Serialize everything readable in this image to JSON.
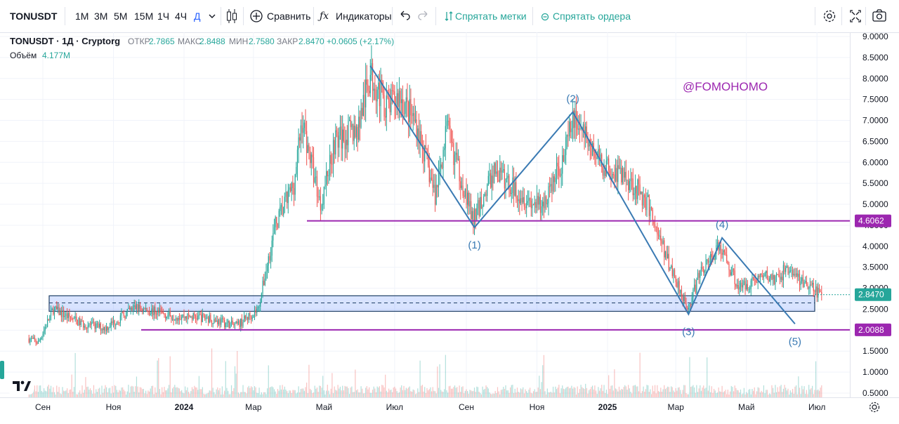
{
  "toolbar": {
    "symbol": "TONUSDT",
    "intervals": [
      "1М",
      "3М",
      "5М",
      "15М",
      "1Ч",
      "4Ч",
      "Д"
    ],
    "compare_label": "Сравнить",
    "indicators_label": "Индикаторы",
    "hide_marks_label": "Спрятать метки",
    "hide_orders_label": "Спрятать ордера",
    "icons": [
      "candles-icon",
      "plus-circle-icon",
      "fx-icon",
      "undo-icon",
      "redo-icon",
      "settings-icon",
      "fullscreen-icon",
      "camera-icon"
    ]
  },
  "legend": {
    "title": "TONUSDT · 1Д · Cryptorg",
    "o_label": "ОТКР",
    "o_value": "2.7865",
    "h_label": "МАКС",
    "h_value": "2.8488",
    "l_label": "МИН",
    "l_value": "2.7580",
    "c_label": "ЗАКР",
    "c_value": "2.8470",
    "change": "+0.0605 (+2.17%)",
    "volume_label": "Объём",
    "volume_value": "4.177M"
  },
  "watermark": "@FOMOHOMO",
  "colors": {
    "up": "#26a69a",
    "down": "#ef5350",
    "wave": "#3a7ab3",
    "level": "#9c27b0",
    "zone": "#2962ff"
  },
  "chart_data": {
    "type": "candlestick",
    "symbol": "TONUSDT",
    "timeframe": "1Д",
    "x_tick_labels": [
      "Сен",
      "Ноя",
      "2024",
      "Мар",
      "Май",
      "Июл",
      "Сен",
      "Ноя",
      "2025",
      "Мар",
      "Май",
      "Июл"
    ],
    "y_tick_labels": [
      "0.5000",
      "1.0000",
      "1.5000",
      "2.0000",
      "2.5000",
      "3.0000",
      "3.5000",
      "4.0000",
      "4.5000",
      "5.0000",
      "5.5000",
      "6.0000",
      "6.5000",
      "7.0000",
      "7.5000",
      "8.0000",
      "8.5000",
      "9.0000"
    ],
    "ylim": [
      0.5,
      9.0
    ],
    "last_price": {
      "value": 2.847,
      "label": "2.8470"
    },
    "horizontal_levels": [
      {
        "value": 4.6062,
        "label": "4.6062"
      },
      {
        "value": 2.0088,
        "label": "2.0088"
      }
    ],
    "support_zone": {
      "low": 2.45,
      "high": 2.82,
      "mid": 2.65
    },
    "wave_labels": [
      "(1)",
      "(2)",
      "(3)",
      "(4)",
      "(5)"
    ],
    "wave_points": [
      {
        "label": "",
        "date": "2024-06-10",
        "price": 8.3
      },
      {
        "label": "(1)",
        "date": "2024-09-08",
        "price": 4.45
      },
      {
        "label": "(2)",
        "date": "2024-12-02",
        "price": 7.2
      },
      {
        "label": "(3)",
        "date": "2025-03-12",
        "price": 2.38
      },
      {
        "label": "(4)",
        "date": "2025-04-10",
        "price": 4.2
      },
      {
        "label": "(5)",
        "date": "2025-06-12",
        "price": 2.15
      }
    ],
    "price_path": [
      {
        "date": "2023-08-20",
        "price": 1.8
      },
      {
        "date": "2023-08-28",
        "price": 1.7
      },
      {
        "date": "2023-09-10",
        "price": 2.5
      },
      {
        "date": "2023-10-05",
        "price": 2.15
      },
      {
        "date": "2023-10-25",
        "price": 2.05
      },
      {
        "date": "2023-11-20",
        "price": 2.55
      },
      {
        "date": "2023-12-20",
        "price": 2.35
      },
      {
        "date": "2024-01-20",
        "price": 2.3
      },
      {
        "date": "2024-02-15",
        "price": 2.1
      },
      {
        "date": "2024-03-05",
        "price": 2.5
      },
      {
        "date": "2024-03-20",
        "price": 4.5
      },
      {
        "date": "2024-04-05",
        "price": 5.5
      },
      {
        "date": "2024-04-12",
        "price": 7.0
      },
      {
        "date": "2024-04-28",
        "price": 5.0
      },
      {
        "date": "2024-05-10",
        "price": 6.5
      },
      {
        "date": "2024-05-30",
        "price": 6.8
      },
      {
        "date": "2024-06-10",
        "price": 8.1
      },
      {
        "date": "2024-06-25",
        "price": 7.3
      },
      {
        "date": "2024-07-05",
        "price": 7.6
      },
      {
        "date": "2024-07-20",
        "price": 6.9
      },
      {
        "date": "2024-08-05",
        "price": 5.2
      },
      {
        "date": "2024-08-15",
        "price": 6.8
      },
      {
        "date": "2024-09-07",
        "price": 4.6
      },
      {
        "date": "2024-09-25",
        "price": 5.8
      },
      {
        "date": "2024-10-20",
        "price": 5.2
      },
      {
        "date": "2024-11-05",
        "price": 4.9
      },
      {
        "date": "2024-11-25",
        "price": 6.2
      },
      {
        "date": "2024-12-03",
        "price": 7.1
      },
      {
        "date": "2024-12-25",
        "price": 6.0
      },
      {
        "date": "2025-01-20",
        "price": 5.6
      },
      {
        "date": "2025-02-05",
        "price": 5.0
      },
      {
        "date": "2025-02-20",
        "price": 3.8
      },
      {
        "date": "2025-03-12",
        "price": 2.5
      },
      {
        "date": "2025-03-22",
        "price": 3.4
      },
      {
        "date": "2025-04-08",
        "price": 4.0
      },
      {
        "date": "2025-04-25",
        "price": 3.0
      },
      {
        "date": "2025-05-15",
        "price": 3.3
      },
      {
        "date": "2025-05-28",
        "price": 3.2
      },
      {
        "date": "2025-06-05",
        "price": 3.5
      },
      {
        "date": "2025-06-20",
        "price": 3.1
      },
      {
        "date": "2025-07-05",
        "price": 2.85
      }
    ]
  }
}
